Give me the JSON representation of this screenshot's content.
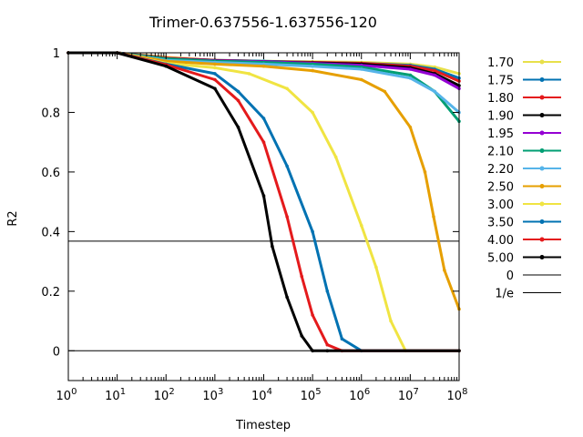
{
  "chart_data": {
    "type": "line",
    "title": "Trimer-0.637556-1.637556-120",
    "xlabel": "Timestep",
    "ylabel": "R2",
    "xscale": "log",
    "xlim": [
      1,
      100000000
    ],
    "ylim": [
      -0.1,
      1.0
    ],
    "xticks": [
      {
        "value": 1,
        "base": "10",
        "exp": "0"
      },
      {
        "value": 10,
        "base": "10",
        "exp": "1"
      },
      {
        "value": 100,
        "base": "10",
        "exp": "2"
      },
      {
        "value": 1000,
        "base": "10",
        "exp": "3"
      },
      {
        "value": 10000,
        "base": "10",
        "exp": "4"
      },
      {
        "value": 100000,
        "base": "10",
        "exp": "5"
      },
      {
        "value": 1000000,
        "base": "10",
        "exp": "6"
      },
      {
        "value": 10000000,
        "base": "10",
        "exp": "7"
      },
      {
        "value": 100000000,
        "base": "10",
        "exp": "8"
      }
    ],
    "yticks": [
      {
        "value": 0,
        "label": "0"
      },
      {
        "value": 0.2,
        "label": "0.2"
      },
      {
        "value": 0.4,
        "label": "0.4"
      },
      {
        "value": 0.6,
        "label": "0.6"
      },
      {
        "value": 0.8,
        "label": "0.8"
      },
      {
        "value": 1,
        "label": "1"
      }
    ],
    "grid": false,
    "legend_position": "right",
    "series": [
      {
        "name": "1.70",
        "color": "#e8e04a",
        "x": [
          1,
          10,
          100,
          1000,
          10000,
          100000,
          1000000,
          10000000,
          31622776,
          100000000
        ],
        "y": [
          1.0,
          1.0,
          0.985,
          0.975,
          0.972,
          0.97,
          0.968,
          0.962,
          0.952,
          0.93
        ]
      },
      {
        "name": "1.75",
        "color": "#0072b2",
        "x": [
          1,
          10,
          100,
          1000,
          10000,
          100000,
          1000000,
          10000000,
          31622776,
          100000000
        ],
        "y": [
          1.0,
          1.0,
          0.982,
          0.975,
          0.972,
          0.968,
          0.965,
          0.958,
          0.945,
          0.915
        ]
      },
      {
        "name": "1.80",
        "color": "#e41a1c",
        "x": [
          1,
          10,
          100,
          1000,
          10000,
          100000,
          1000000,
          10000000,
          31622776,
          100000000
        ],
        "y": [
          1.0,
          1.0,
          0.983,
          0.975,
          0.97,
          0.968,
          0.965,
          0.955,
          0.94,
          0.905
        ]
      },
      {
        "name": "1.90",
        "color": "#000000",
        "x": [
          1,
          10,
          100,
          1000,
          10000,
          100000,
          1000000,
          10000000,
          31622776,
          100000000
        ],
        "y": [
          1.0,
          1.0,
          0.98,
          0.974,
          0.97,
          0.966,
          0.962,
          0.95,
          0.93,
          0.89
        ]
      },
      {
        "name": "1.95",
        "color": "#9400d3",
        "x": [
          1,
          10,
          100,
          1000,
          10000,
          100000,
          1000000,
          10000000,
          31622776,
          100000000
        ],
        "y": [
          1.0,
          1.0,
          0.98,
          0.973,
          0.97,
          0.965,
          0.958,
          0.945,
          0.925,
          0.88
        ]
      },
      {
        "name": "2.10",
        "color": "#009e73",
        "x": [
          1,
          10,
          100,
          1000,
          10000,
          100000,
          1000000,
          10000000,
          31622776,
          100000000
        ],
        "y": [
          1.0,
          1.0,
          0.98,
          0.972,
          0.968,
          0.962,
          0.952,
          0.925,
          0.87,
          0.77
        ]
      },
      {
        "name": "2.20",
        "color": "#56b4e9",
        "x": [
          1,
          10,
          100,
          1000,
          10000,
          100000,
          1000000,
          10000000,
          31622776,
          100000000
        ],
        "y": [
          1.0,
          1.0,
          0.975,
          0.968,
          0.962,
          0.955,
          0.945,
          0.915,
          0.87,
          0.8
        ]
      },
      {
        "name": "2.50",
        "color": "#e69f00",
        "x": [
          1,
          10,
          100,
          1000,
          10000,
          100000,
          1000000,
          3000000,
          10000000,
          20000000,
          30000000,
          50000000,
          100000000
        ],
        "y": [
          1.0,
          1.0,
          0.972,
          0.962,
          0.955,
          0.94,
          0.91,
          0.87,
          0.75,
          0.6,
          0.45,
          0.27,
          0.14
        ]
      },
      {
        "name": "3.00",
        "color": "#f0e442",
        "x": [
          1,
          10,
          100,
          1000,
          5000,
          30000,
          100000,
          300000,
          1000000,
          2000000,
          4000000,
          8000000,
          100000000
        ],
        "y": [
          1.0,
          1.0,
          0.965,
          0.95,
          0.93,
          0.88,
          0.8,
          0.65,
          0.42,
          0.28,
          0.1,
          0.0,
          0.0
        ]
      },
      {
        "name": "3.50",
        "color": "#0072b2",
        "x": [
          1,
          10,
          100,
          1000,
          3000,
          10000,
          30000,
          100000,
          200000,
          400000,
          1000000,
          100000000
        ],
        "y": [
          1.0,
          1.0,
          0.962,
          0.93,
          0.87,
          0.78,
          0.62,
          0.4,
          0.2,
          0.04,
          0.0,
          0.0
        ]
      },
      {
        "name": "4.00",
        "color": "#e41a1c",
        "x": [
          1,
          10,
          100,
          1000,
          3000,
          10000,
          30000,
          60000,
          100000,
          200000,
          400000,
          100000000
        ],
        "y": [
          1.0,
          1.0,
          0.96,
          0.91,
          0.84,
          0.7,
          0.45,
          0.25,
          0.12,
          0.02,
          0.0,
          0.0
        ]
      },
      {
        "name": "5.00",
        "color": "#000000",
        "x": [
          1,
          10,
          100,
          1000,
          3000,
          10000,
          15000,
          30000,
          60000,
          100000,
          200000,
          100000000
        ],
        "y": [
          1.0,
          1.0,
          0.955,
          0.88,
          0.75,
          0.52,
          0.35,
          0.18,
          0.05,
          0.0,
          0.0,
          0.0
        ]
      }
    ],
    "reference_lines": [
      {
        "name": "0",
        "value": 0,
        "color": "#000000"
      },
      {
        "name": "1/e",
        "value": 0.3679,
        "color": "#000000"
      }
    ]
  }
}
